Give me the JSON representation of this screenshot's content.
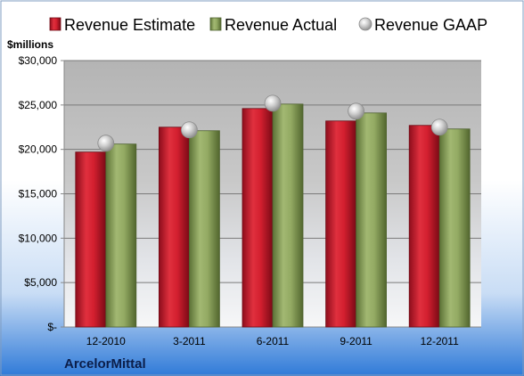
{
  "chart_data": {
    "type": "bar",
    "unit_label": "$millions",
    "footer_label": "ArcelorMittal",
    "categories": [
      "12-2010",
      "3-2011",
      "6-2011",
      "9-2011",
      "12-2011"
    ],
    "series": [
      {
        "name": "Revenue Estimate",
        "kind": "bar",
        "color": "#c8102e",
        "values": [
          19700,
          22500,
          24600,
          23200,
          22700
        ]
      },
      {
        "name": "Revenue Actual",
        "kind": "bar",
        "color": "#8aa05a",
        "values": [
          20600,
          22100,
          25100,
          24100,
          22300
        ]
      },
      {
        "name": "Revenue GAAP",
        "kind": "marker",
        "color": "#b8b8b8",
        "values": [
          20700,
          22200,
          25200,
          24300,
          22500
        ]
      }
    ],
    "ylim": [
      0,
      30000
    ],
    "yticks": [
      0,
      5000,
      10000,
      15000,
      20000,
      25000,
      30000
    ],
    "ytick_labels": [
      "$-",
      "$5,000",
      "$10,000",
      "$15,000",
      "$20,000",
      "$25,000",
      "$30,000"
    ],
    "grid": true,
    "legend_position": "top"
  }
}
